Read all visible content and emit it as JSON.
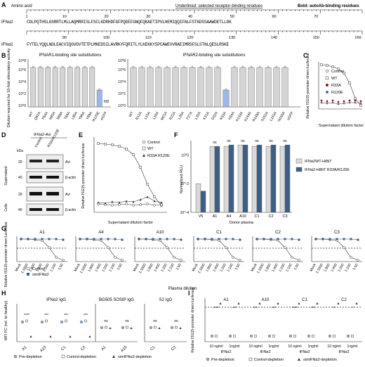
{
  "panelA": {
    "label": "A",
    "amino": "Amino acid",
    "legend_under": "Underlined: selected receptor-binding residues",
    "legend_bold": "Bold: autoAb-binding residues",
    "row1_label": "IFNα2",
    "row1_seq": "CDLPQTHSLGSRRTLMLLAQMRRISLFSCLKDRHDFGFPQEEFGNQFQKAETIPVLHEMIQQIFNLFSTKDSSAAWDETLLDK",
    "row2_label": "IFNα2",
    "row2_seq": "FYTELYQQLNDLEACVIQGVGVTETPLMKEDSILAVRKYFQRITLYLKEKKYSPCAWEVVRAEIMRSFSLSTNLQESLRSKE",
    "ticks1": [
      "1",
      "10",
      "20",
      "30",
      "40",
      "50",
      "60",
      "70"
    ],
    "ticks2": [
      "90",
      "100",
      "110",
      "120",
      "130",
      "140",
      "150",
      "160"
    ]
  },
  "panelB": {
    "label": "B",
    "ylabel": "Dilution required for 10-fold stimulatory activity",
    "title1": "IFNAR1-binding site substitutions",
    "title2": "IFNAR2-binding site substitutions",
    "cats1": [
      "WT",
      "Q62A",
      "F64A",
      "N65A",
      "S68A",
      "T69A",
      "L80A",
      "Y85A",
      "Y89A",
      "R120E",
      "eGFP"
    ],
    "cats2": [
      "WT",
      "R12A",
      "L15A",
      "L16A",
      "M21A",
      "R22A",
      "L26A",
      "F27A",
      "L30A",
      "K31A",
      "D32A",
      "R33A",
      "H34A",
      "K133A",
      "K144A",
      "R149A",
      "S152A",
      "L153A",
      "N156A",
      "eGFP"
    ],
    "nd": "ND",
    "yticks": [
      "10^0",
      "10^2",
      "10^4",
      "10^6",
      "10^8"
    ]
  },
  "panelC": {
    "label": "C",
    "ylabel": "Relative ISG15-promoter driven luciferase",
    "xlabel": "Supernatant dilution factor",
    "legend": [
      "Control",
      "WT",
      "R33A",
      "R120E"
    ]
  },
  "panelD": {
    "label": "D",
    "header": "IFNα2-Avi",
    "cols": [
      "Control",
      "R33A/R120E"
    ],
    "kda": "kDa",
    "rows": [
      {
        "group": "Supernatant",
        "marker": "20",
        "band": "Avi"
      },
      {
        "group": "Supernatant",
        "marker": "40",
        "band": "β-actin"
      },
      {
        "group": "Cells",
        "marker": "20",
        "band": "Avi"
      },
      {
        "group": "Cells",
        "marker": "40",
        "band": "β-actin"
      }
    ]
  },
  "panelE": {
    "label": "E",
    "ylabel": "Relative ISG15-promoter driven luciferase",
    "xlabel": "Supernatant dilution factor",
    "legend": [
      "Control",
      "WT",
      "R33A R120E"
    ]
  },
  "panelF": {
    "label": "F",
    "ylabel": "Normalized RLU",
    "xlabel": "Donor plasma",
    "cats": [
      "V5",
      "A1",
      "A4",
      "A10",
      "C1",
      "C2",
      "C3"
    ],
    "ns": "ns",
    "legend": [
      "IFNα2WT-HiBiT",
      "IFNα2-HiBiT R33A/R120E"
    ],
    "chart_data": {
      "type": "bar",
      "categories": [
        "V5",
        "A1",
        "A4",
        "A10",
        "C1",
        "C2",
        "C3"
      ],
      "ylim": [
        0.0001,
        10
      ],
      "ylabel": "Normalized RLU",
      "log_scale": true,
      "series": [
        {
          "name": "IFNα2WT-HiBiT",
          "values": [
            0.01,
            4,
            4,
            5,
            4,
            4,
            4
          ]
        },
        {
          "name": "IFNα2-HiBiT R33A/R120E",
          "values": [
            0.003,
            4,
            5,
            5,
            5,
            5,
            5
          ]
        }
      ]
    }
  },
  "panelG": {
    "label": "G",
    "ylabel": "Relative ISG15-promoter driven luciferase",
    "xlabel": "Plasma dilution",
    "titles": [
      "A1",
      "A4",
      "A10",
      "C1",
      "C2",
      "C3"
    ],
    "xticks": [
      "Mock",
      "1:1600",
      "1:800",
      "1:400",
      "1:200",
      "1:100",
      "1:50"
    ],
    "legend": [
      "Control",
      "simIFNα2"
    ]
  },
  "panelH": {
    "label": "H",
    "ylabel": "MFI FC (rel. to healthy)",
    "titles": [
      "IFNα2 IgG",
      "BG505 SOSIP IgG",
      "S2 IgG"
    ],
    "groups": [
      [
        "A1",
        "A10",
        "C1",
        "C2"
      ],
      [
        "A1",
        "A10"
      ],
      [
        "C1",
        "C2"
      ]
    ],
    "sig": [
      "****",
      "***",
      "***",
      "***",
      "ns",
      "ns",
      "ns",
      "ns"
    ],
    "legend": [
      "Pre-depletion",
      "Control-depletion",
      "simIFNα2-depletion"
    ]
  },
  "panelI": {
    "label": "I",
    "ylabel": "Relative ISG15-promoter driven luciferase",
    "titles": [
      "A1",
      "A10",
      "C1",
      "C2"
    ],
    "xticks": [
      "10 ng/ml",
      "1ng/ml"
    ],
    "xgroup": "IFNα2",
    "sig": [
      "****",
      "***",
      "***",
      "***",
      "****",
      "***",
      "**",
      "*"
    ],
    "legend": [
      "Pre-depletion",
      "Control-depletion",
      "simIFNα2-depletion"
    ]
  }
}
